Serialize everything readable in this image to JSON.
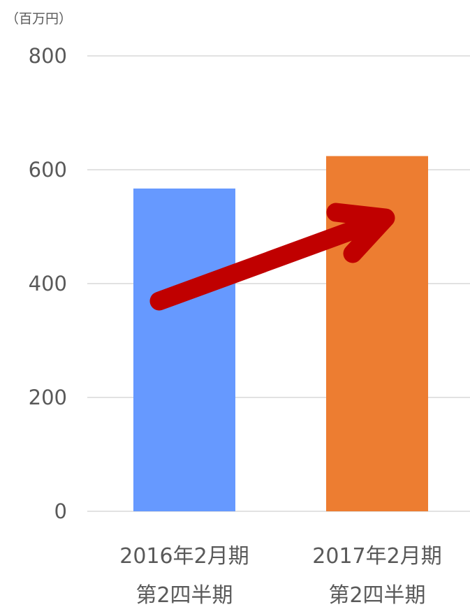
{
  "chart_data": {
    "type": "bar",
    "unit_label": "（百万円）",
    "categories": [
      [
        "2016年2月期",
        "第2四半期"
      ],
      [
        "2017年2月期",
        "第2四半期"
      ]
    ],
    "values": [
      567,
      624
    ],
    "bar_colors": [
      "#6699ff",
      "#ed7d31"
    ],
    "ylim": [
      0,
      800
    ],
    "yticks": [
      "0",
      "200",
      "400",
      "600",
      "800"
    ],
    "grid": true,
    "annotation": {
      "type": "arrow",
      "direction": "up-right",
      "color": "#c00000"
    }
  }
}
